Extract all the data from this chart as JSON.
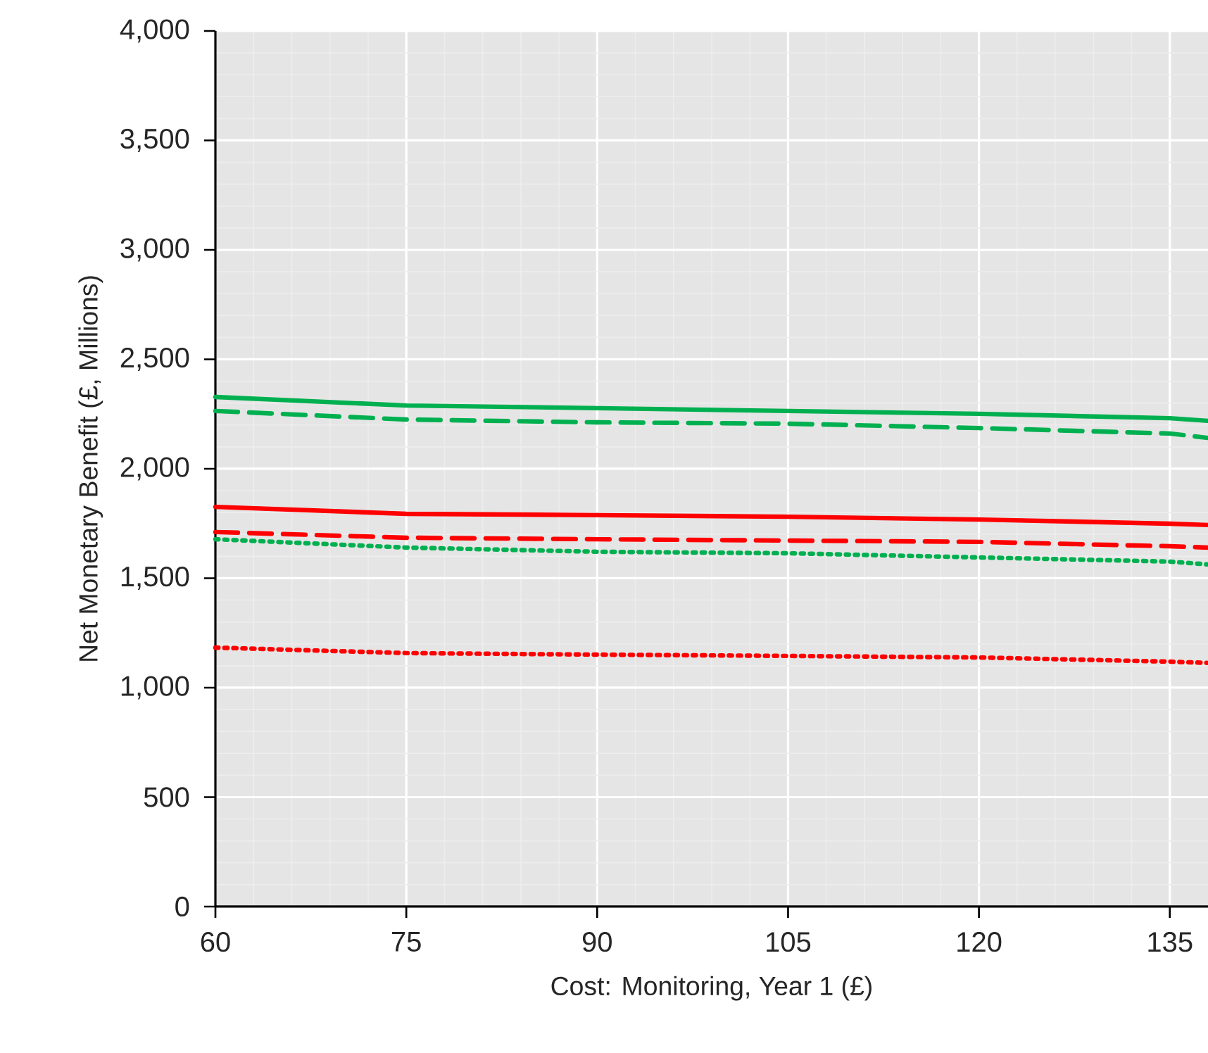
{
  "chart_data": {
    "type": "line",
    "xlabel": "Cost: Monitoring, Year 1 (£)",
    "ylabel": "Net Monetary Benefit (£, Millions)",
    "x": [
      60,
      75,
      90,
      105,
      120,
      135,
      138
    ],
    "xlim": [
      60,
      138
    ],
    "xticks": [
      60,
      75,
      90,
      105,
      120,
      135
    ],
    "ylim": [
      0,
      4000
    ],
    "yticks": [
      {
        "value": 0,
        "label": "0"
      },
      {
        "value": 500,
        "label": "500"
      },
      {
        "value": 1000,
        "label": "1,000"
      },
      {
        "value": 1500,
        "label": "1,500"
      },
      {
        "value": 2000,
        "label": "2,000"
      },
      {
        "value": 2500,
        "label": "2,500"
      },
      {
        "value": 3000,
        "label": "3,000"
      },
      {
        "value": 3500,
        "label": "3,500"
      },
      {
        "value": 4000,
        "label": "4,000"
      }
    ],
    "grid": true,
    "legend": false,
    "marker": "none",
    "series": [
      {
        "color": "#00b050",
        "line_style": "solid",
        "values": [
          2328,
          2289,
          2277,
          2264,
          2251,
          2231,
          2219
        ]
      },
      {
        "color": "#00b050",
        "line_style": "dashed",
        "values": [
          2264,
          2225,
          2212,
          2206,
          2186,
          2161,
          2141
        ]
      },
      {
        "color": "#ff0000",
        "line_style": "solid",
        "values": [
          1826,
          1794,
          1788,
          1781,
          1768,
          1749,
          1743
        ]
      },
      {
        "color": "#ff0000",
        "line_style": "dashed",
        "values": [
          1711,
          1685,
          1678,
          1672,
          1666,
          1646,
          1640
        ]
      },
      {
        "color": "#00b050",
        "line_style": "dotted",
        "values": [
          1678,
          1640,
          1621,
          1614,
          1595,
          1576,
          1563
        ]
      },
      {
        "color": "#ff0000",
        "line_style": "dotted",
        "values": [
          1183,
          1158,
          1151,
          1145,
          1138,
          1119,
          1113
        ]
      }
    ]
  }
}
